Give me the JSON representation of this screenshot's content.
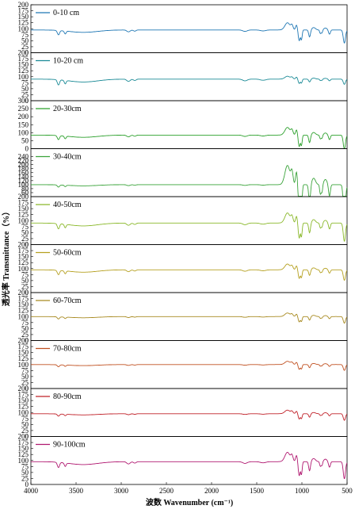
{
  "chart_data": {
    "type": "line",
    "xlabel": "波数  Wavenumber (cm⁻¹)",
    "ylabel": "透光率 Transmittance（%）",
    "xlim": [
      4000,
      500
    ],
    "x_ticks": [
      4000,
      3500,
      3000,
      2500,
      2000,
      1500,
      1000,
      500
    ],
    "panels": [
      {
        "name": "0-10 cm",
        "color": "#1f77b4",
        "ylim": [
          0,
          200
        ],
        "yticks": [
          0,
          25,
          50,
          75,
          100,
          125,
          150,
          175,
          200
        ],
        "baseline": 95,
        "dip_scale": 1.0,
        "rise_scale": 1.0
      },
      {
        "name": "10-20 cm",
        "color": "#1a8a96",
        "ylim": [
          0,
          200
        ],
        "yticks": [
          0,
          25,
          50,
          75,
          100,
          125,
          150,
          175,
          200
        ],
        "baseline": 90,
        "dip_scale": 1.2,
        "rise_scale": 0.4
      },
      {
        "name": "20-30cm",
        "color": "#2ca02c",
        "ylim": [
          0,
          300
        ],
        "yticks": [
          0,
          50,
          100,
          150,
          200,
          250,
          300
        ],
        "baseline": 85,
        "dip_scale": 1.4,
        "rise_scale": 1.6
      },
      {
        "name": "30-40cm",
        "color": "#3aa33a",
        "ylim": [
          40,
          280
        ],
        "yticks": [
          60,
          80,
          100,
          120,
          140,
          160,
          180,
          200,
          220,
          240
        ],
        "baseline": 100,
        "dip_scale": 0.6,
        "rise_scale": 3.2
      },
      {
        "name": "40-50cm",
        "color": "#8ab82a",
        "ylim": [
          0,
          200
        ],
        "yticks": [
          0,
          25,
          50,
          75,
          100,
          125,
          150,
          175,
          200
        ],
        "baseline": 90,
        "dip_scale": 1.2,
        "rise_scale": 1.4
      },
      {
        "name": "50-60cm",
        "color": "#b5a020",
        "ylim": [
          0,
          200
        ],
        "yticks": [
          0,
          25,
          50,
          75,
          100,
          125,
          150,
          175,
          200
        ],
        "baseline": 95,
        "dip_scale": 1.0,
        "rise_scale": 0.8
      },
      {
        "name": "60-70cm",
        "color": "#a88a20",
        "ylim": [
          0,
          200
        ],
        "yticks": [
          0,
          25,
          50,
          75,
          100,
          125,
          150,
          175,
          200
        ],
        "baseline": 100,
        "dip_scale": 0.5,
        "rise_scale": 0.5
      },
      {
        "name": "70-80cm",
        "color": "#c05020",
        "ylim": [
          0,
          200
        ],
        "yticks": [
          0,
          25,
          50,
          75,
          100,
          125,
          150,
          175,
          200
        ],
        "baseline": 100,
        "dip_scale": 0.45,
        "rise_scale": 0.45
      },
      {
        "name": "80-90cm",
        "color": "#c02028",
        "ylim": [
          0,
          200
        ],
        "yticks": [
          0,
          25,
          50,
          75,
          100,
          125,
          150,
          175,
          200
        ],
        "baseline": 95,
        "dip_scale": 0.5,
        "rise_scale": 0.5
      },
      {
        "name": "90-100cm",
        "color": "#b01870",
        "ylim": [
          0,
          200
        ],
        "yticks": [
          0,
          25,
          50,
          75,
          100,
          125,
          150,
          175,
          200
        ],
        "baseline": 95,
        "dip_scale": 1.2,
        "rise_scale": 1.3
      }
    ],
    "peaks_cm-1": [
      3695,
      3620,
      3420,
      2920,
      2850,
      1630,
      1430,
      1160,
      1080,
      1030,
      1005,
      915,
      795,
      777,
      695,
      530,
      470
    ],
    "grid": false,
    "legend": "top-left inside each panel"
  }
}
